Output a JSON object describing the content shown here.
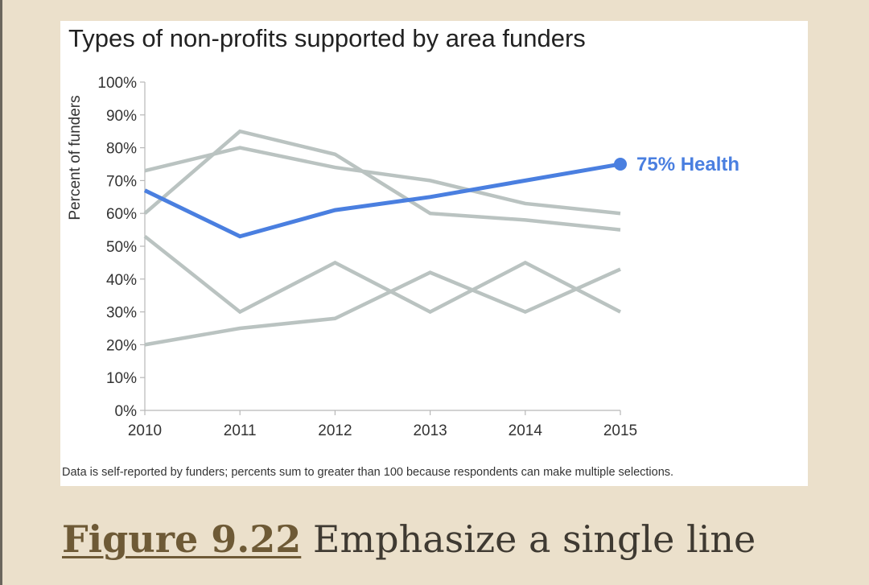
{
  "caption": {
    "figure_label": "Figure 9.22",
    "text": " Emphasize a single line"
  },
  "colors": {
    "highlight": "#4a7fe0",
    "muted": "#bac3c1",
    "axis": "#b8b8b8",
    "page_background": "#ebe0cb",
    "caption_link": "#6e5a36"
  },
  "chart_data": {
    "type": "line",
    "title": "Types of non-profits supported by area funders",
    "ylabel": "Percent of funders",
    "xlabel": "",
    "footnote": "Data is self-reported by funders; percents sum to greater than 100 because respondents can make multiple selections.",
    "x": [
      2010,
      2011,
      2012,
      2013,
      2014,
      2015
    ],
    "x_tick_labels": [
      "2010",
      "2011",
      "2012",
      "2013",
      "2014",
      "2015"
    ],
    "y_tick_labels": [
      "0%",
      "10%",
      "20%",
      "30%",
      "40%",
      "50%",
      "60%",
      "70%",
      "80%",
      "90%",
      "100%"
    ],
    "ylim": [
      0,
      100
    ],
    "grid": false,
    "highlight_label": "75% Health",
    "series": [
      {
        "values": [
          60,
          85,
          78,
          60,
          58,
          55
        ],
        "highlight": false
      },
      {
        "values": [
          73,
          80,
          74,
          70,
          63,
          60
        ],
        "highlight": false
      },
      {
        "values": [
          53,
          30,
          45,
          30,
          45,
          30
        ],
        "highlight": false
      },
      {
        "values": [
          20,
          25,
          28,
          42,
          30,
          43
        ],
        "highlight": false
      },
      {
        "name": "Health",
        "values": [
          67,
          53,
          61,
          65,
          70,
          75
        ],
        "highlight": true
      }
    ]
  }
}
